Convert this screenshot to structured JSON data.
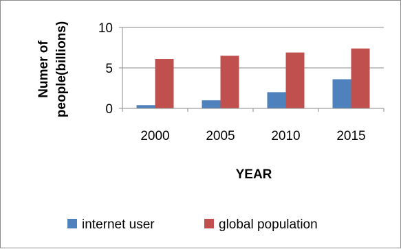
{
  "chart_data": {
    "type": "bar",
    "categories": [
      "2000",
      "2005",
      "2010",
      "2015"
    ],
    "series": [
      {
        "name": "internet user",
        "values": [
          0.4,
          1.0,
          2.0,
          3.6
        ],
        "color": "#4F81BD"
      },
      {
        "name": "global population",
        "values": [
          6.1,
          6.5,
          6.9,
          7.4
        ],
        "color": "#C0504D"
      }
    ],
    "xlabel": "YEAR",
    "ylabel": "Numer of people(billions)",
    "ylabel_lines": [
      "Numer of",
      "people(billions)"
    ],
    "ylim": [
      0,
      10
    ],
    "yticks": [
      0,
      5,
      10
    ],
    "grid": true,
    "legend_position": "bottom"
  }
}
